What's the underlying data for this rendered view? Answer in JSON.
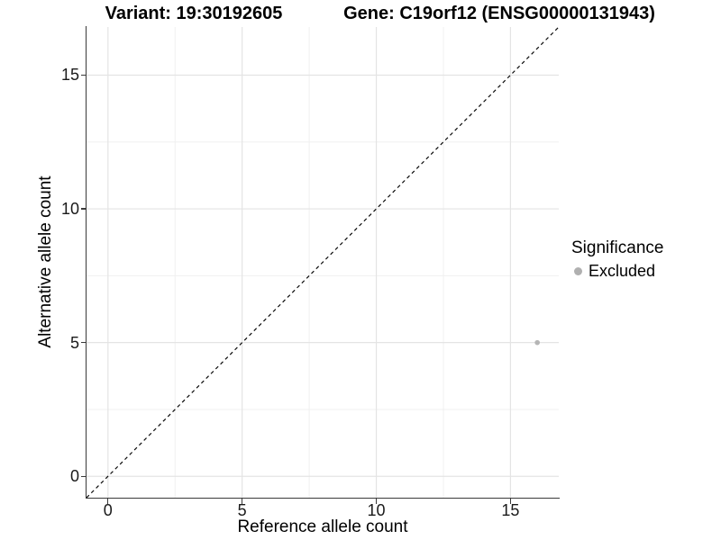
{
  "figure": {
    "title_variant": "Variant: 19:30192605",
    "title_gene": "Gene: C19orf12 (ENSG00000131943)",
    "x_axis_label": "Reference allele count",
    "y_axis_label": "Alternative allele count"
  },
  "legend": {
    "title": "Significance",
    "items": [
      {
        "label": "Excluded",
        "marker": "circle-icon",
        "color": "#b0b0b0"
      }
    ]
  },
  "chart_data": {
    "type": "scatter",
    "title": "Variant: 19:30192605 | Gene: C19orf12 (ENSG00000131943)",
    "xlabel": "Reference allele count",
    "ylabel": "Alternative allele count",
    "xlim": [
      -0.8,
      16.8
    ],
    "ylim": [
      -0.8,
      16.8
    ],
    "x_ticks": [
      0,
      5,
      10,
      15
    ],
    "y_ticks": [
      0,
      5,
      10,
      15
    ],
    "x_minor_ticks": [
      2.5,
      7.5,
      12.5
    ],
    "y_minor_ticks": [
      2.5,
      7.5,
      12.5
    ],
    "grid": "major-and-minor",
    "legend_position": "right",
    "series": [
      {
        "name": "Excluded",
        "color": "#b5b5b5",
        "points": [
          {
            "x": 16,
            "y": 5
          }
        ]
      }
    ],
    "reference_line": {
      "slope": 1,
      "intercept": 0,
      "style": "dashed",
      "color": "#0a0a0a"
    }
  },
  "colors": {
    "background": "#ffffff",
    "grid_major": "#e4e4e4",
    "grid_minor": "#f0f0f0",
    "axis_line": "#3a3a3a",
    "tick_text": "#1a1a1a",
    "point": "#b5b5b5",
    "reference_line": "#0a0a0a"
  }
}
